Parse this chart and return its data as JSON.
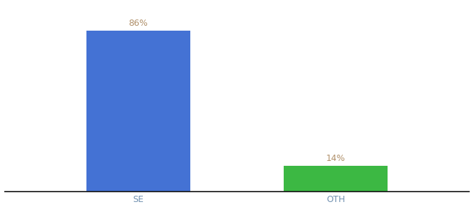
{
  "categories": [
    "SE",
    "OTH"
  ],
  "values": [
    86,
    14
  ],
  "bar_colors": [
    "#4472d4",
    "#3cb843"
  ],
  "value_labels": [
    "86%",
    "14%"
  ],
  "label_color": "#b0906a",
  "xlabel": "",
  "ylabel": "",
  "ylim": [
    0,
    100
  ],
  "background_color": "#ffffff",
  "bar_width": 0.18,
  "x_positions": [
    0.28,
    0.62
  ],
  "xlim": [
    0.05,
    0.85
  ],
  "title_fontsize": 10,
  "tick_fontsize": 9,
  "label_fontsize": 9,
  "tick_color": "#7090b0"
}
